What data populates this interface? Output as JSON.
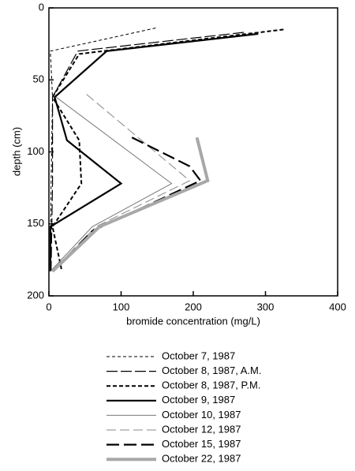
{
  "chart_data": {
    "type": "line",
    "xlabel": "bromide concentration (mg/L)",
    "ylabel": "depth (cm)",
    "xlim": [
      0,
      400
    ],
    "xticks": [
      0,
      100,
      200,
      300,
      400
    ],
    "ylim": [
      0,
      200
    ],
    "yticks": [
      0,
      50,
      100,
      150,
      200
    ],
    "y_inverted": true,
    "series": [
      {
        "name": "October 7, 1987",
        "color": "#000000",
        "width": 1,
        "dash": "4,3",
        "x": [
          148,
          2,
          5,
          3,
          2
        ],
        "y": [
          14,
          30,
          62,
          122,
          183
        ]
      },
      {
        "name": "October 8, 1987,  A.M.",
        "color": "#000000",
        "width": 1.2,
        "dash": "14,4",
        "x": [
          270,
          40,
          5,
          5,
          3
        ],
        "y": [
          17,
          30,
          62,
          122,
          183
        ]
      },
      {
        "name": "October 8, 1987,  P.M.",
        "color": "#000000",
        "width": 2,
        "dash": "5,3",
        "x": [
          325,
          42,
          5,
          42,
          45,
          5,
          18
        ],
        "y": [
          15,
          32,
          62,
          92,
          122,
          152,
          183
        ]
      },
      {
        "name": "October 9, 1987",
        "color": "#000000",
        "width": 2.2,
        "dash": "none",
        "x": [
          290,
          80,
          8,
          25,
          100,
          2,
          2
        ],
        "y": [
          18,
          30,
          62,
          92,
          122,
          152,
          183
        ]
      },
      {
        "name": "October 10, 1987",
        "color": "#777777",
        "width": 1,
        "dash": "none",
        "x": [
          10,
          170,
          60,
          2
        ],
        "y": [
          62,
          122,
          152,
          183
        ]
      },
      {
        "name": "October 12, 1987",
        "color": "#888888",
        "width": 1,
        "dash": "12,5",
        "x": [
          52,
          195,
          65,
          5
        ],
        "y": [
          60,
          120,
          152,
          183
        ]
      },
      {
        "name": "October 15, 1987",
        "color": "#000000",
        "width": 2.2,
        "dash": "16,6",
        "x": [
          115,
          195,
          210,
          60,
          5
        ],
        "y": [
          90,
          110,
          120,
          155,
          183
        ]
      },
      {
        "name": "October 22, 1987",
        "color": "#a8a8a8",
        "width": 4,
        "dash": "none",
        "x": [
          205,
          220,
          70,
          5
        ],
        "y": [
          90,
          120,
          152,
          183
        ]
      }
    ]
  }
}
